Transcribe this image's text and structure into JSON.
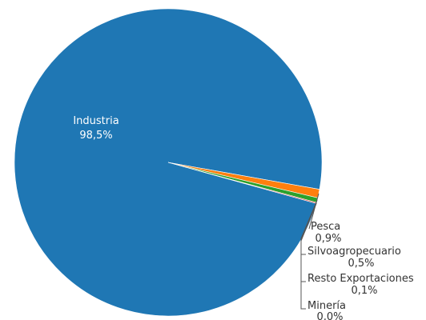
{
  "chart_data": {
    "type": "pie",
    "slices": [
      {
        "label": "Industria",
        "value_text": "98,5%",
        "value": 98.5,
        "color": "#1f77b4",
        "label_color": "#ffffff",
        "label_placement": "inside"
      },
      {
        "label": "Pesca",
        "value_text": "0,9%",
        "value": 0.9,
        "color": "#ff7f0e",
        "label_color": "#333333",
        "label_placement": "outside"
      },
      {
        "label": "Silvoagropecuario",
        "value_text": "0,5%",
        "value": 0.5,
        "color": "#2ca02c",
        "label_color": "#333333",
        "label_placement": "outside"
      },
      {
        "label": "Resto Exportaciones",
        "value_text": "0,1%",
        "value": 0.1,
        "color": "#d62728",
        "label_color": "#333333",
        "label_placement": "outside"
      },
      {
        "label": "Minería",
        "value_text": "0,0%",
        "value": 0.0,
        "color": "#9467bd",
        "label_color": "#333333",
        "label_placement": "outside"
      }
    ]
  }
}
